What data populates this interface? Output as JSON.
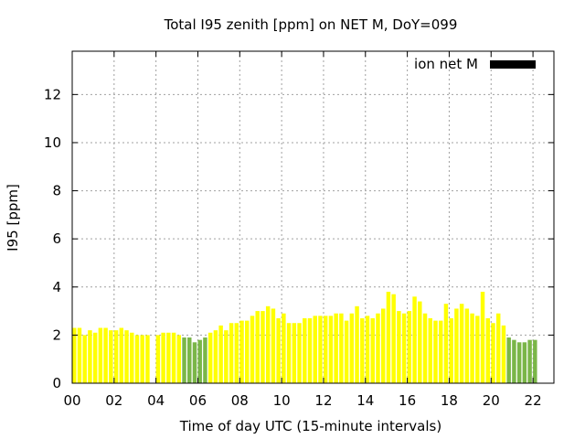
{
  "chart_data": {
    "type": "bar",
    "title": "Total I95 zenith [ppm] on NET M, DoY=099",
    "xlabel": "Time of day UTC (15-minute intervals)",
    "ylabel": "I95 [ppm]",
    "legend": {
      "label": "ion net M",
      "color": "#000000",
      "position": "top-right"
    },
    "xlim": [
      0,
      23
    ],
    "ylim": [
      0,
      13.8
    ],
    "xticks": [
      "00",
      "02",
      "04",
      "06",
      "08",
      "10",
      "12",
      "14",
      "16",
      "18",
      "20",
      "22"
    ],
    "xtick_values": [
      0,
      2,
      4,
      6,
      8,
      10,
      12,
      14,
      16,
      18,
      20,
      22
    ],
    "yticks": [
      0,
      2,
      4,
      6,
      8,
      10,
      12
    ],
    "grid": true,
    "bar_interval_hours": 0.25,
    "colors": {
      "high": "#ffff00",
      "low": "#7ab648",
      "legend_bar": "#000000"
    },
    "color_threshold": 2.0,
    "values": [
      2.3,
      2.3,
      2.0,
      2.2,
      2.1,
      2.3,
      2.3,
      2.2,
      2.2,
      2.3,
      2.2,
      2.1,
      2.0,
      2.0,
      2.0,
      0.0,
      2.0,
      2.1,
      2.1,
      2.1,
      2.0,
      1.9,
      1.9,
      1.7,
      1.8,
      1.9,
      2.1,
      2.2,
      2.4,
      2.2,
      2.5,
      2.5,
      2.6,
      2.6,
      2.8,
      3.0,
      3.0,
      3.2,
      3.1,
      2.7,
      2.9,
      2.5,
      2.5,
      2.5,
      2.7,
      2.7,
      2.8,
      2.8,
      2.8,
      2.8,
      2.9,
      2.9,
      2.6,
      2.9,
      3.2,
      2.7,
      2.8,
      2.7,
      2.9,
      3.1,
      3.8,
      3.7,
      3.0,
      2.9,
      3.0,
      3.6,
      3.4,
      2.9,
      2.7,
      2.6,
      2.6,
      3.3,
      2.7,
      3.1,
      3.3,
      3.1,
      2.9,
      2.8,
      3.8,
      2.7,
      2.5,
      2.9,
      2.4,
      1.9,
      1.8,
      1.7,
      1.7,
      1.8,
      1.8
    ]
  }
}
